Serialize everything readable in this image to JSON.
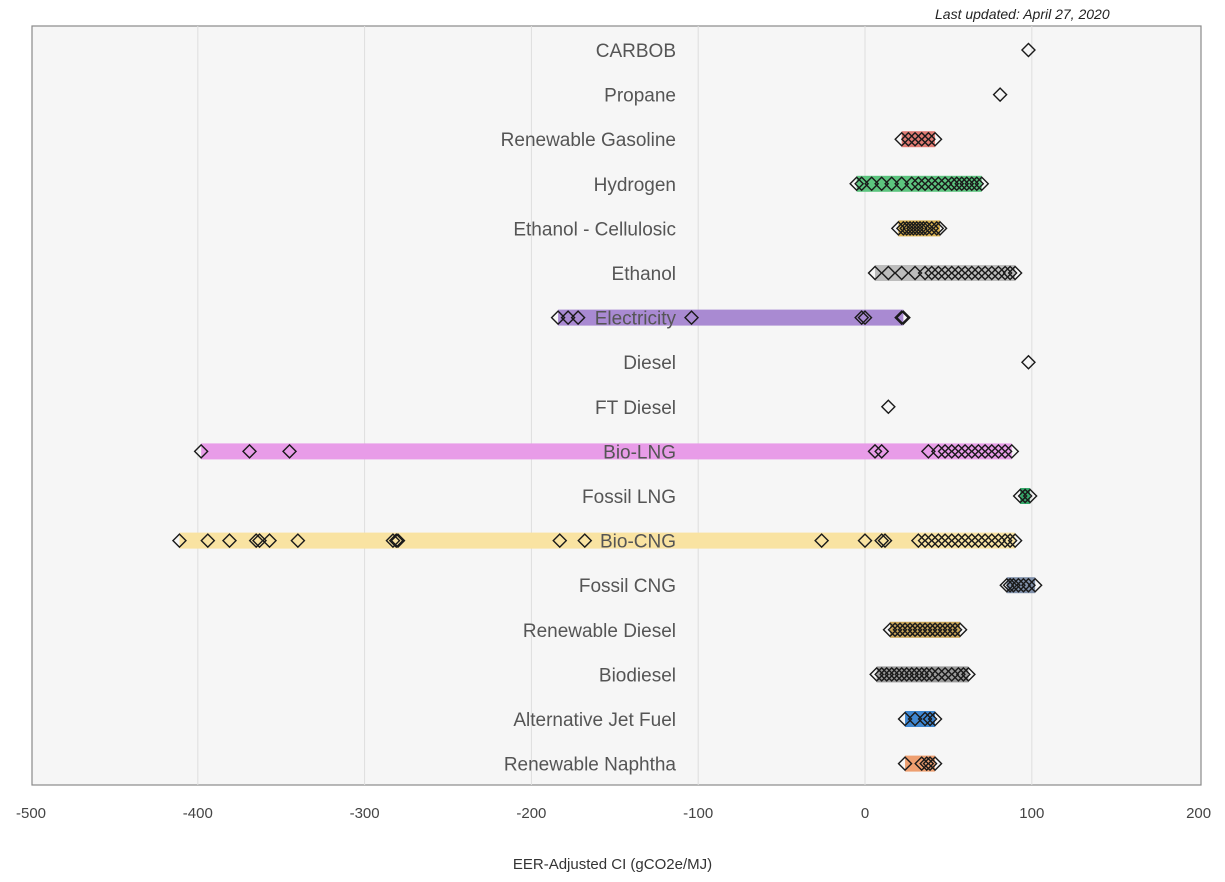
{
  "last_updated": "Last updated: April 27, 2020",
  "chart_data": {
    "type": "range-scatter",
    "title": "",
    "xlabel": "EER-Adjusted CI (gCO2e/MJ)",
    "ylabel": "",
    "xlim": [
      -500,
      200
    ],
    "xticks": [
      -500,
      -400,
      -300,
      -200,
      -100,
      0,
      100,
      200
    ],
    "grid": true,
    "legend": "none",
    "marker": "open diamond",
    "series": [
      {
        "name": "CARBOB",
        "color": "",
        "range": null,
        "points": [
          98
        ]
      },
      {
        "name": "Propane",
        "color": "",
        "range": null,
        "points": [
          81
        ]
      },
      {
        "name": "Renewable Gasoline",
        "color": "#e07a72",
        "range": [
          22,
          42
        ],
        "points": [
          22,
          26,
          30,
          34,
          38,
          42
        ]
      },
      {
        "name": "Hydrogen",
        "color": "#5cc47e",
        "range": [
          -5,
          70
        ],
        "points": [
          -5,
          -2,
          4,
          10,
          16,
          22,
          28,
          32,
          36,
          40,
          44,
          48,
          52,
          55,
          58,
          61,
          64,
          67,
          70
        ]
      },
      {
        "name": "Ethanol - Cellulosic",
        "color": "#d8b050",
        "range": [
          20,
          45
        ],
        "points": [
          20,
          23,
          25,
          27,
          29,
          31,
          33,
          35,
          37,
          40,
          43,
          45
        ]
      },
      {
        "name": "Ethanol",
        "color": "#bdbdbd",
        "range": [
          6,
          90
        ],
        "points": [
          6,
          14,
          22,
          30,
          36,
          40,
          44,
          48,
          52,
          56,
          60,
          64,
          68,
          72,
          76,
          80,
          84,
          87,
          90
        ]
      },
      {
        "name": "Electricity",
        "color": "#a98ad2",
        "range": [
          -184,
          23
        ],
        "points": [
          -184,
          -178,
          -172,
          -104,
          -2,
          0,
          22,
          23
        ]
      },
      {
        "name": "Diesel",
        "color": "",
        "range": null,
        "points": [
          98
        ]
      },
      {
        "name": "FT Diesel",
        "color": "",
        "range": null,
        "points": [
          14
        ]
      },
      {
        "name": "Bio-LNG",
        "color": "#e89ce8",
        "range": [
          -398,
          88
        ],
        "points": [
          -398,
          -369,
          -345,
          6,
          10,
          38,
          44,
          48,
          52,
          56,
          60,
          64,
          68,
          72,
          76,
          80,
          84,
          88
        ]
      },
      {
        "name": "Fossil LNG",
        "color": "#36a86a",
        "range": [
          93,
          99
        ],
        "points": [
          93,
          96,
          99
        ]
      },
      {
        "name": "Bio-CNG",
        "color": "#f9e3a2",
        "range": [
          -411,
          90
        ],
        "points": [
          -411,
          -394,
          -381,
          -365,
          -363,
          -357,
          -340,
          -283,
          -281,
          -280,
          -183,
          -168,
          -26,
          0,
          10,
          12,
          32,
          36,
          40,
          44,
          48,
          52,
          56,
          60,
          64,
          68,
          72,
          76,
          80,
          84,
          87,
          90
        ]
      },
      {
        "name": "Fossil CNG",
        "color": "#7f8fa9",
        "range": [
          85,
          102
        ],
        "points": [
          85,
          87,
          89,
          92,
          95,
          98,
          102
        ]
      },
      {
        "name": "Renewable Diesel",
        "color": "#c9a558",
        "range": [
          15,
          57
        ],
        "points": [
          15,
          18,
          21,
          24,
          27,
          30,
          33,
          36,
          39,
          42,
          45,
          48,
          51,
          54,
          57
        ]
      },
      {
        "name": "Biodiesel",
        "color": "#9a9a9a",
        "range": [
          7,
          62
        ],
        "points": [
          7,
          10,
          13,
          16,
          19,
          22,
          25,
          28,
          31,
          34,
          37,
          40,
          44,
          48,
          52,
          56,
          59,
          62
        ]
      },
      {
        "name": "Alternative Jet Fuel",
        "color": "#3f87d1",
        "range": [
          24,
          42
        ],
        "points": [
          24,
          30,
          36,
          39,
          42
        ]
      },
      {
        "name": "Renewable Naphtha",
        "color": "#ee9f70",
        "range": [
          24,
          42
        ],
        "points": [
          24,
          34,
          37,
          39,
          42
        ]
      }
    ]
  }
}
